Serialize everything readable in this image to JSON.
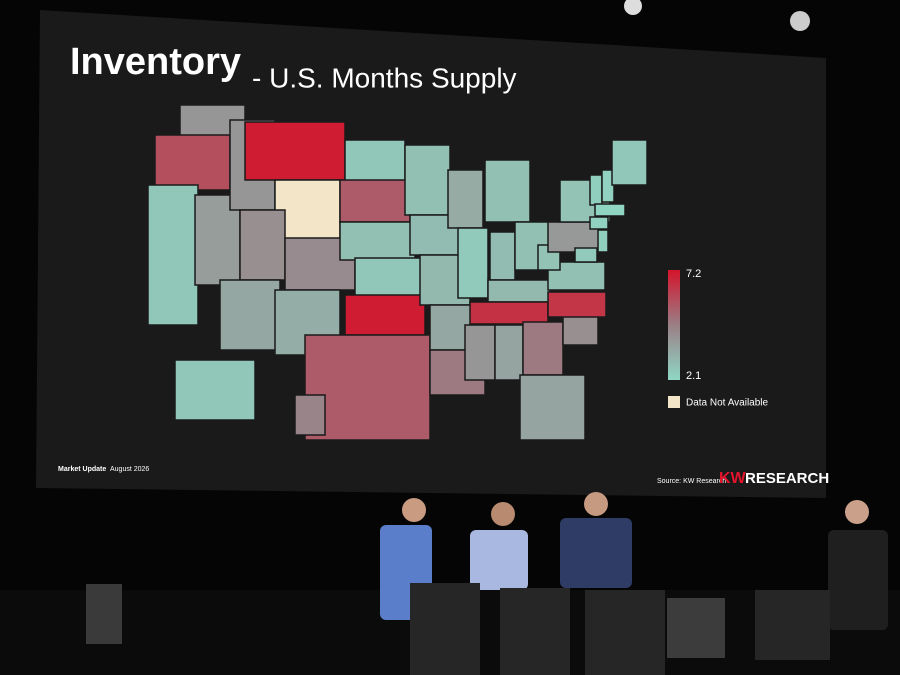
{
  "slide": {
    "title": "Inventory",
    "subtitle": "- U.S. Months Supply",
    "legend": {
      "max": 7.2,
      "min": 2.1,
      "na_label": "Data Not Available"
    },
    "footer": {
      "left": "Market Update",
      "date": "August 2026",
      "source": "Source: KW Research",
      "brand_a": "KW",
      "brand_b": "RESEARCH"
    }
  },
  "map": {
    "type": "choropleth",
    "values": [
      4.0,
      5.8,
      2.6,
      3.8,
      4.0,
      7.0,
      null,
      4.2,
      3.5,
      4.3,
      3.3,
      2.6,
      5.5,
      2.8,
      2.6,
      7.0,
      5.5,
      2.8,
      2.9,
      3.0,
      3.5,
      4.8,
      3.4,
      2.5,
      2.8,
      2.9,
      2.8,
      3.0,
      6.5,
      4.0,
      3.6,
      4.8,
      3.6,
      4.2,
      6.4,
      2.8,
      2.7,
      3.9,
      2.7,
      2.4,
      2.3,
      2.6,
      2.2,
      2.3,
      2.4,
      2.5,
      2.6,
      4.5
    ]
  }
}
